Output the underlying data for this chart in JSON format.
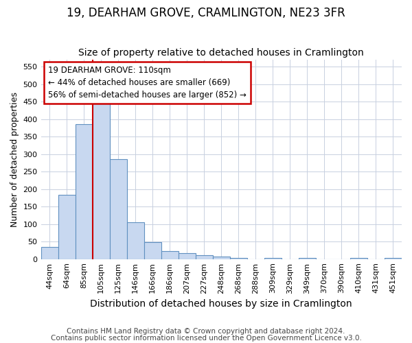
{
  "title1": "19, DEARHAM GROVE, CRAMLINGTON, NE23 3FR",
  "title2": "Size of property relative to detached houses in Cramlington",
  "xlabel": "Distribution of detached houses by size in Cramlington",
  "ylabel": "Number of detached properties",
  "categories": [
    "44sqm",
    "64sqm",
    "85sqm",
    "105sqm",
    "125sqm",
    "146sqm",
    "166sqm",
    "186sqm",
    "207sqm",
    "227sqm",
    "248sqm",
    "268sqm",
    "288sqm",
    "309sqm",
    "329sqm",
    "349sqm",
    "370sqm",
    "390sqm",
    "410sqm",
    "431sqm",
    "451sqm"
  ],
  "values": [
    35,
    183,
    385,
    458,
    285,
    105,
    48,
    22,
    18,
    12,
    8,
    4,
    0,
    3,
    0,
    3,
    0,
    0,
    3,
    0,
    3
  ],
  "bar_color": "#c8d8f0",
  "bar_edge_color": "#6090c0",
  "vline_color": "#cc0000",
  "annotation_line1": "19 DEARHAM GROVE: 110sqm",
  "annotation_line2": "← 44% of detached houses are smaller (669)",
  "annotation_line3": "56% of semi-detached houses are larger (852) →",
  "annotation_box_color": "#ffffff",
  "annotation_box_edge": "#cc0000",
  "ylim": [
    0,
    570
  ],
  "yticks": [
    0,
    50,
    100,
    150,
    200,
    250,
    300,
    350,
    400,
    450,
    500,
    550
  ],
  "footnote1": "Contains HM Land Registry data © Crown copyright and database right 2024.",
  "footnote2": "Contains public sector information licensed under the Open Government Licence v3.0.",
  "bg_color": "#ffffff",
  "plot_bg_color": "#ffffff",
  "grid_color": "#c8d0e0",
  "title1_fontsize": 12,
  "title2_fontsize": 10,
  "xlabel_fontsize": 10,
  "ylabel_fontsize": 9,
  "tick_fontsize": 8,
  "footnote_fontsize": 7.5
}
